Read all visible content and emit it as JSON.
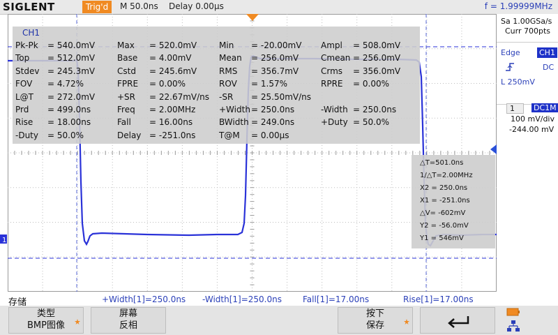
{
  "topbar": {
    "brand": "SIGLENT",
    "trig_status": "Trig'd",
    "timebase": "M 50.0ns",
    "delay": "Delay 0.00μs",
    "frequency": "f = 1.99999MHz"
  },
  "measurements": {
    "channel": "CH1",
    "rows": [
      [
        [
          "Pk-Pk",
          "= 540.0mV"
        ],
        [
          "Max",
          "= 520.0mV"
        ],
        [
          "Min",
          "= -20.00mV"
        ],
        [
          "Ampl",
          "= 508.0mV"
        ]
      ],
      [
        [
          "Top",
          "= 512.0mV"
        ],
        [
          "Base",
          "= 4.00mV"
        ],
        [
          "Mean",
          "= 256.0mV"
        ],
        [
          "Cmean",
          "= 256.0mV"
        ]
      ],
      [
        [
          "Stdev",
          "= 245.3mV"
        ],
        [
          "Cstd",
          "= 245.6mV"
        ],
        [
          "RMS",
          "= 356.7mV"
        ],
        [
          "Crms",
          "= 356.0mV"
        ]
      ],
      [
        [
          "FOV",
          "= 4.72%"
        ],
        [
          "FPRE",
          "= 0.00%"
        ],
        [
          "ROV",
          "= 1.57%"
        ],
        [
          "RPRE",
          "= 0.00%"
        ]
      ],
      [
        [
          "L@T",
          "= 272.0mV"
        ],
        [
          "+SR",
          "= 22.67mV/ns"
        ],
        [
          "-SR",
          "= 25.50mV/ns"
        ],
        [
          "",
          ""
        ]
      ],
      [
        [
          "Prd",
          "= 499.0ns"
        ],
        [
          "Freq",
          "= 2.00MHz"
        ],
        [
          "+Width",
          "= 250.0ns"
        ],
        [
          "-Width",
          "= 250.0ns"
        ]
      ],
      [
        [
          "Rise",
          "= 18.00ns"
        ],
        [
          "Fall",
          "= 16.00ns"
        ],
        [
          "BWidth",
          "= 249.0ns"
        ],
        [
          "+Duty",
          "= 50.0%"
        ]
      ],
      [
        [
          "-Duty",
          "= 50.0%"
        ],
        [
          "Delay",
          "= -251.0ns"
        ],
        [
          "T@M",
          "= 0.00μs"
        ],
        [
          "",
          ""
        ]
      ]
    ]
  },
  "cursors": {
    "lines": [
      "△T=501.0ns",
      "1/△T=2.00MHz",
      "X2 = 250.0ns",
      "X1 = -251.0ns",
      "△V= -602mV",
      "Y2 = -56.0mV",
      "Y1 = 546mV"
    ]
  },
  "right_panel": {
    "sample_rate": "Sa 1.00GSa/s",
    "curr": "Curr 700pts",
    "trigger_type": "Edge",
    "trigger_source": "CH1",
    "coupling": "DC",
    "trigger_level": "L   250mV",
    "channel_num": "1",
    "channel_coupling": "DC1M",
    "volts_div": "100 mV/div",
    "offset": "-244.00 mV"
  },
  "status": {
    "label": "存储",
    "items": [
      "+Width[1]=250.0ns",
      "-Width[1]=250.0ns",
      "Fall[1]=17.00ns",
      "Rise[1]=17.00ns"
    ]
  },
  "softkeys": {
    "k1_line1": "类型",
    "k1_line2": "BMP图像",
    "k2_line1": "屏幕",
    "k2_line2": "反相",
    "k5_line1": "按下",
    "k5_line2": "保存",
    "k6_icon": "return-arrow-icon"
  },
  "colors": {
    "trace": "#2a32d8",
    "accent": "#f08a22",
    "label_blue": "#2a3fb8"
  }
}
